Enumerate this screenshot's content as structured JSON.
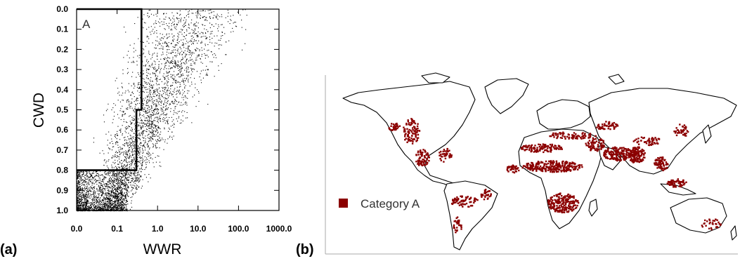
{
  "panels": {
    "a_label": "(a)",
    "b_label": "(b)"
  },
  "chart_data": [
    {
      "type": "scatter",
      "title": "",
      "xlabel": "WWR",
      "ylabel": "CWD",
      "x_scale": "log",
      "x_ticks": [
        "0.0",
        "0.1",
        "1.0",
        "10.0",
        "100.0",
        "1000.0"
      ],
      "y_ticks": [
        "0.0",
        "0.1",
        "0.2",
        "0.3",
        "0.4",
        "0.5",
        "0.6",
        "0.7",
        "0.8",
        "0.9",
        "1.0"
      ],
      "ylim": [
        1.0,
        0.0
      ],
      "y_inverted": true,
      "region_label": "A",
      "region_A_boundary": [
        {
          "x": 0.0,
          "y": 0.0
        },
        {
          "x": 0.4,
          "y": 0.0
        },
        {
          "x": 0.4,
          "y": 0.5
        },
        {
          "x": 0.3,
          "y": 0.5
        },
        {
          "x": 0.3,
          "y": 0.8
        },
        {
          "x": 0.0,
          "y": 0.8
        }
      ],
      "point_cloud": "thousands of points; very dense near WWR < 0.1 and CWD near 1.0, spreading diagonally toward WWR ~ 1000 at CWD 0.0",
      "colors": {
        "points": "#000000",
        "boundary": "#000000"
      }
    },
    {
      "type": "map",
      "title": "",
      "legend": [
        {
          "name": "Category A",
          "color": "#8b0000"
        }
      ],
      "colors": {
        "category_a": "#8b0000",
        "coastline": "#000000",
        "frame": "#999999"
      }
    }
  ]
}
